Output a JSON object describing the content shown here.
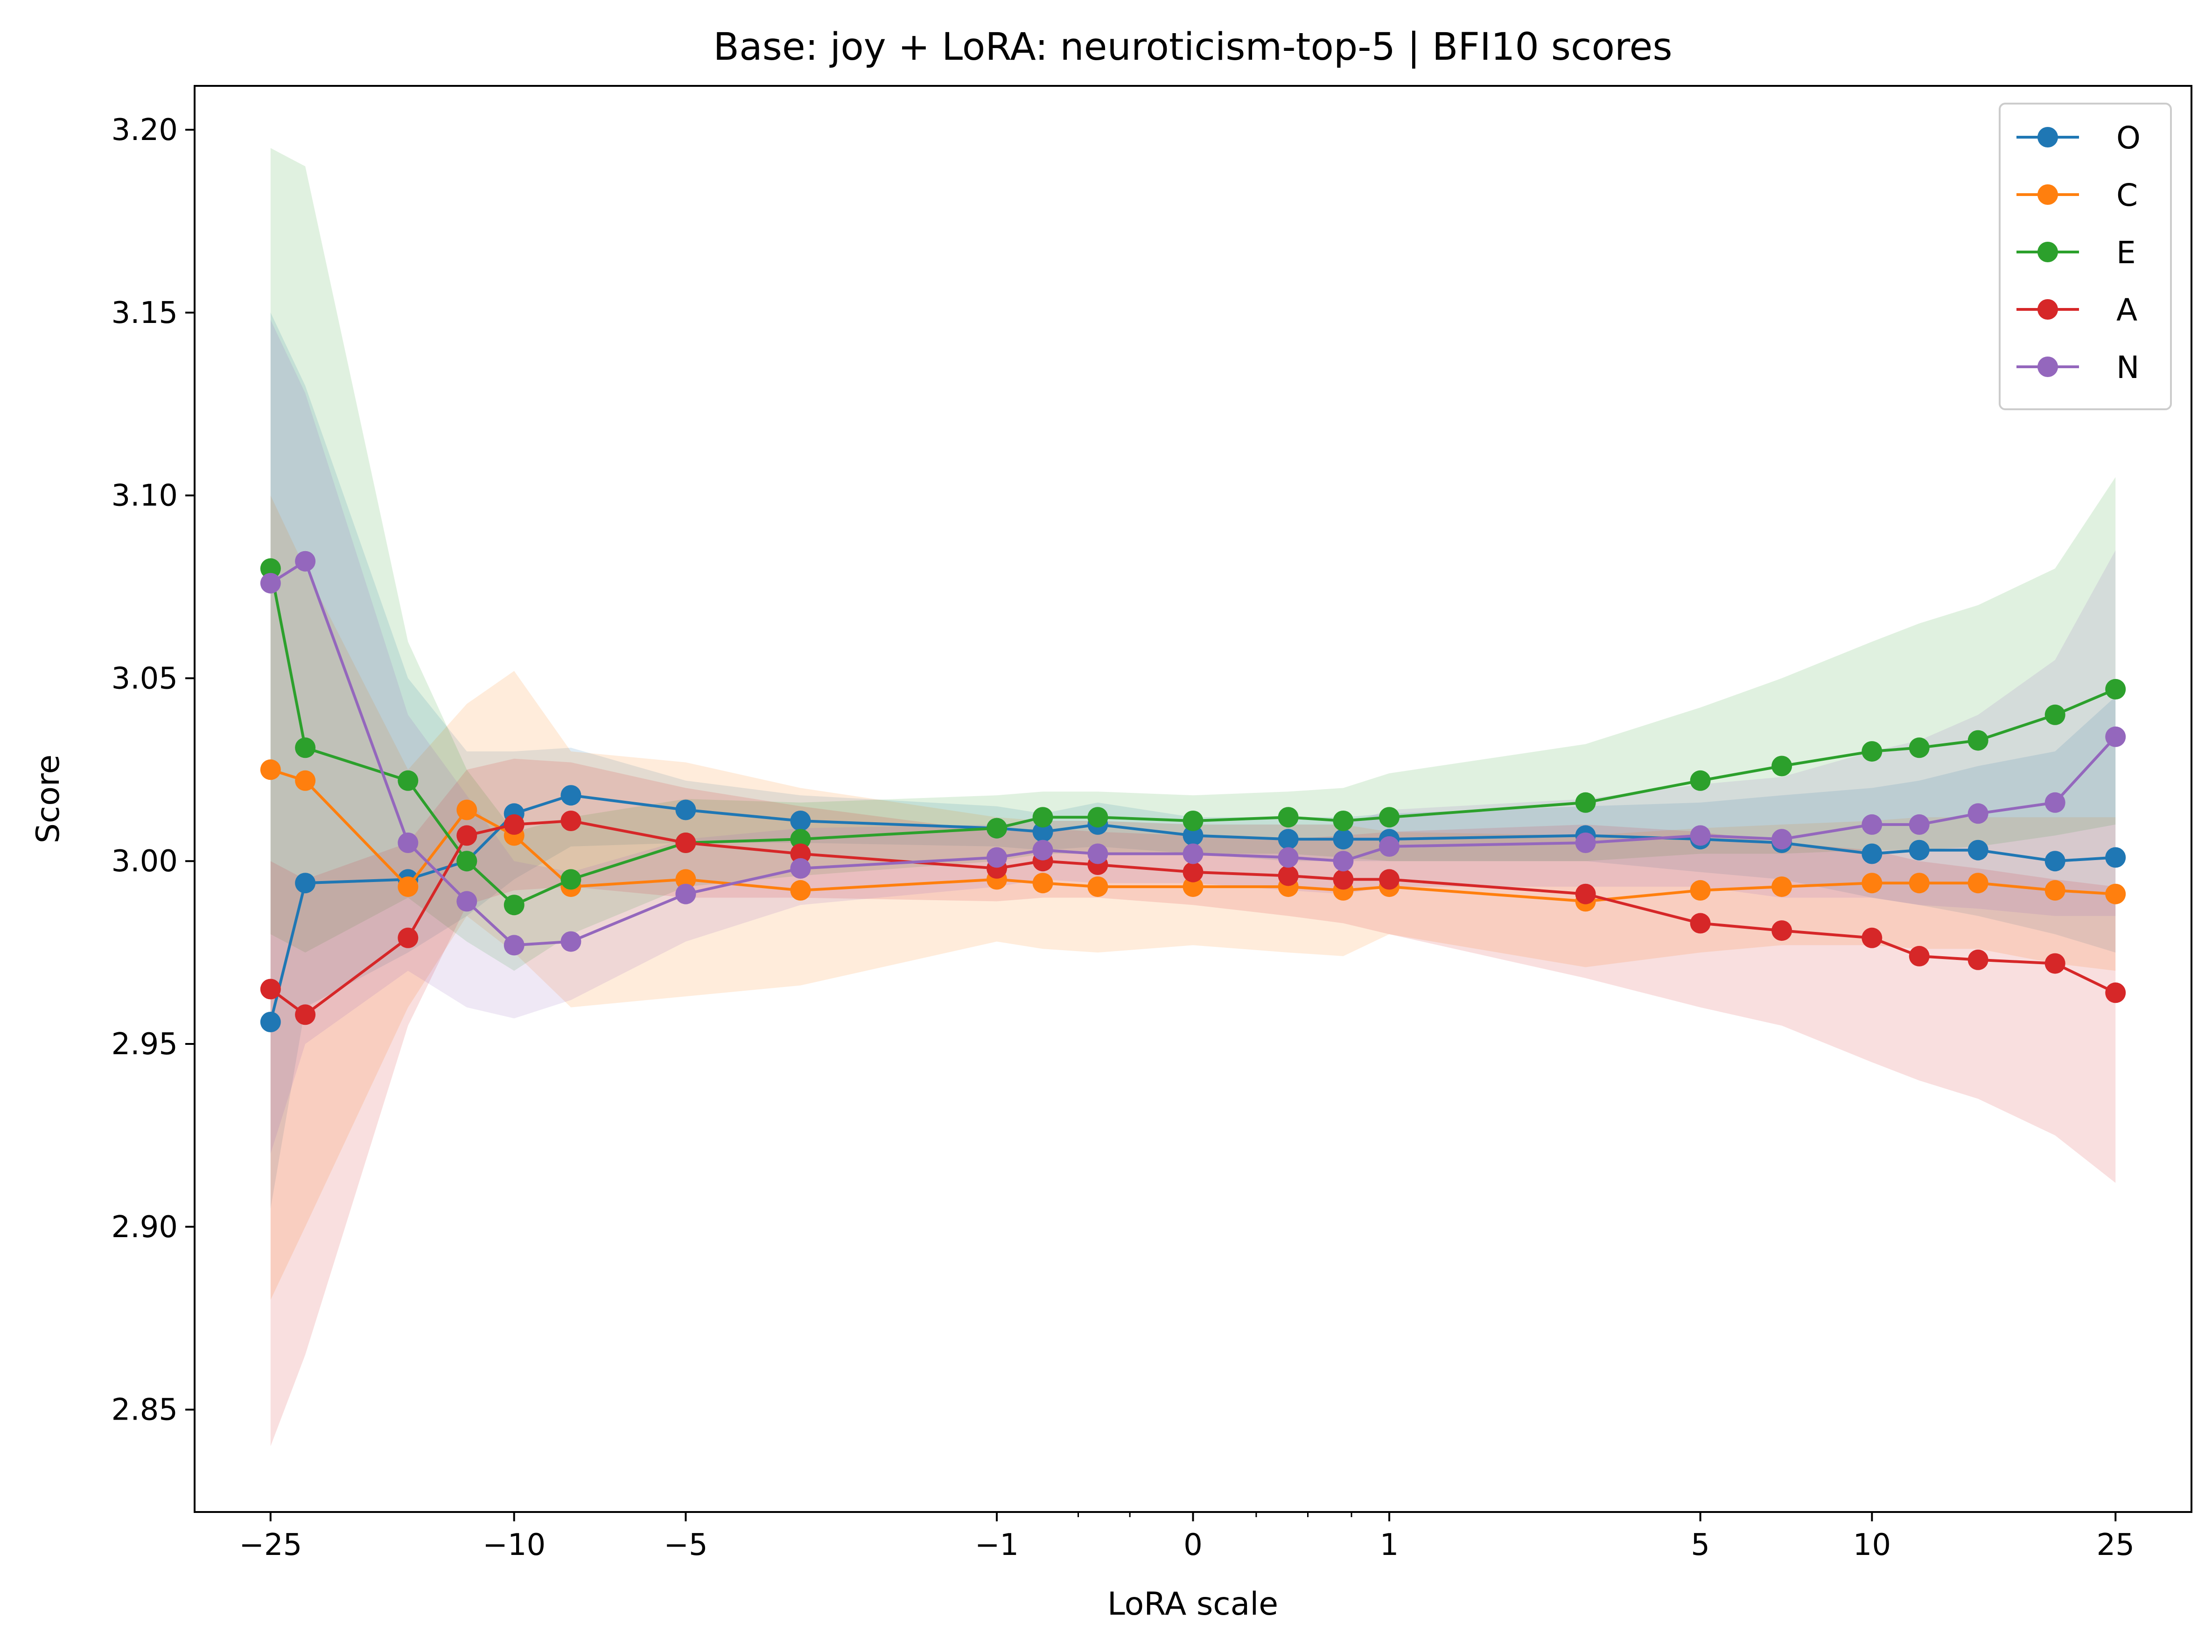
{
  "chart_data": {
    "type": "line",
    "title": "Base: joy + LoRA: neuroticism-top-5 | BFI10 scores",
    "xlabel": "LoRA scale",
    "ylabel": "Score",
    "xscale": "symlog",
    "xlim": [
      -33,
      33
    ],
    "ylim": [
      2.822,
      3.212
    ],
    "x_tick_labels": [
      {
        "x": -25,
        "label": "−25"
      },
      {
        "x": -10,
        "label": "−10"
      },
      {
        "x": -5,
        "label": "−5"
      },
      {
        "x": -1,
        "label": "−1"
      },
      {
        "x": 0,
        "label": "0"
      },
      {
        "x": 1,
        "label": "1"
      },
      {
        "x": 5,
        "label": "5"
      },
      {
        "x": 10,
        "label": "10"
      },
      {
        "x": 25,
        "label": "25"
      }
    ],
    "x_minor_ticks": [
      -0.5,
      -0.25,
      0.25,
      0.5,
      0.75
    ],
    "y_ticks": [
      2.85,
      2.9,
      2.95,
      3.0,
      3.05,
      3.1,
      3.15,
      3.2
    ],
    "y_tick_labels": [
      "2.85",
      "2.90",
      "2.95",
      "3.00",
      "3.05",
      "3.10",
      "3.15",
      "3.20"
    ],
    "legend": {
      "position": "top-right"
    },
    "grid": false,
    "x": [
      -25,
      -22,
      -15,
      -12,
      -10,
      -8,
      -5,
      -3,
      -1,
      -0.7,
      -0.4,
      0,
      0.4,
      0.7,
      1,
      3,
      5,
      7,
      10,
      12,
      15,
      20,
      25
    ],
    "series": [
      {
        "name": "O",
        "color": "#1f77b4",
        "values": [
          2.956,
          2.994,
          2.995,
          3.0,
          3.013,
          3.018,
          3.014,
          3.011,
          3.009,
          3.008,
          3.01,
          3.007,
          3.006,
          3.006,
          3.006,
          3.007,
          3.006,
          3.005,
          3.002,
          3.003,
          3.003,
          3.0,
          3.001
        ],
        "band_lower": [
          2.905,
          2.96,
          2.975,
          2.985,
          2.995,
          3.004,
          3.005,
          3.005,
          3.004,
          3.003,
          3.004,
          3.002,
          3.0,
          3.0,
          3.0,
          3.0,
          2.997,
          2.995,
          2.99,
          2.988,
          2.985,
          2.98,
          2.975
        ],
        "band_upper": [
          3.15,
          3.13,
          3.05,
          3.03,
          3.03,
          3.031,
          3.022,
          3.018,
          3.015,
          3.013,
          3.016,
          3.012,
          3.012,
          3.012,
          3.013,
          3.015,
          3.016,
          3.018,
          3.02,
          3.022,
          3.026,
          3.03,
          3.045
        ]
      },
      {
        "name": "C",
        "color": "#ff7f0e",
        "values": [
          3.025,
          3.022,
          2.993,
          3.014,
          3.007,
          2.993,
          2.995,
          2.992,
          2.995,
          2.994,
          2.993,
          2.993,
          2.993,
          2.992,
          2.993,
          2.989,
          2.992,
          2.993,
          2.994,
          2.994,
          2.994,
          2.992,
          2.991
        ],
        "band_lower": [
          2.88,
          2.9,
          2.96,
          2.985,
          2.975,
          2.96,
          2.963,
          2.966,
          2.978,
          2.976,
          2.975,
          2.977,
          2.975,
          2.974,
          2.98,
          2.971,
          2.975,
          2.977,
          2.977,
          2.976,
          2.976,
          2.972,
          2.97
        ],
        "band_upper": [
          3.1,
          3.08,
          3.025,
          3.043,
          3.052,
          3.03,
          3.027,
          3.02,
          3.012,
          3.011,
          3.011,
          3.01,
          3.01,
          3.01,
          3.008,
          3.007,
          3.009,
          3.01,
          3.011,
          3.012,
          3.012,
          3.012,
          3.012
        ]
      },
      {
        "name": "E",
        "color": "#2ca02c",
        "values": [
          3.08,
          3.031,
          3.022,
          3.0,
          2.988,
          2.995,
          3.005,
          3.006,
          3.009,
          3.012,
          3.012,
          3.011,
          3.012,
          3.011,
          3.012,
          3.016,
          3.022,
          3.026,
          3.03,
          3.031,
          3.033,
          3.04,
          3.047
        ],
        "band_lower": [
          2.98,
          2.975,
          2.99,
          2.978,
          2.97,
          2.98,
          2.993,
          2.996,
          3.0,
          3.002,
          3.002,
          3.002,
          3.002,
          3.001,
          3.0,
          3.0,
          3.002,
          3.002,
          3.003,
          3.003,
          3.004,
          3.007,
          3.01
        ],
        "band_upper": [
          3.195,
          3.19,
          3.06,
          3.025,
          3.008,
          3.012,
          3.017,
          3.016,
          3.018,
          3.019,
          3.019,
          3.018,
          3.019,
          3.02,
          3.024,
          3.032,
          3.042,
          3.05,
          3.06,
          3.065,
          3.07,
          3.08,
          3.105
        ]
      },
      {
        "name": "A",
        "color": "#d62728",
        "values": [
          2.965,
          2.958,
          2.979,
          3.007,
          3.01,
          3.011,
          3.005,
          3.002,
          2.998,
          3.0,
          2.999,
          2.997,
          2.996,
          2.995,
          2.995,
          2.991,
          2.983,
          2.981,
          2.979,
          2.974,
          2.973,
          2.972,
          2.964
        ],
        "band_lower": [
          2.84,
          2.865,
          2.955,
          2.988,
          2.992,
          2.993,
          2.99,
          2.99,
          2.989,
          2.99,
          2.99,
          2.988,
          2.985,
          2.983,
          2.98,
          2.968,
          2.96,
          2.955,
          2.945,
          2.94,
          2.935,
          2.925,
          2.912
        ],
        "band_upper": [
          3.0,
          2.995,
          3.005,
          3.025,
          3.028,
          3.027,
          3.02,
          3.015,
          3.008,
          3.009,
          3.008,
          3.007,
          3.006,
          3.007,
          3.008,
          3.01,
          3.008,
          3.005,
          3.003,
          3.0,
          2.998,
          2.995,
          2.993
        ]
      },
      {
        "name": "N",
        "color": "#9467bd",
        "values": [
          3.076,
          3.082,
          3.005,
          2.989,
          2.977,
          2.978,
          2.991,
          2.998,
          3.001,
          3.003,
          3.002,
          3.002,
          3.001,
          3.0,
          3.004,
          3.005,
          3.007,
          3.006,
          3.01,
          3.01,
          3.013,
          3.016,
          3.034
        ],
        "band_lower": [
          2.92,
          2.95,
          2.97,
          2.96,
          2.957,
          2.962,
          2.978,
          2.988,
          2.993,
          2.995,
          2.994,
          2.994,
          2.992,
          2.991,
          2.993,
          2.993,
          2.993,
          2.99,
          2.99,
          2.988,
          2.987,
          2.985,
          2.985
        ],
        "band_upper": [
          3.148,
          3.128,
          3.04,
          3.018,
          3.0,
          2.997,
          3.006,
          3.009,
          3.01,
          3.011,
          3.011,
          3.01,
          3.01,
          3.01,
          3.014,
          3.017,
          3.021,
          3.023,
          3.03,
          3.033,
          3.04,
          3.055,
          3.085
        ]
      }
    ]
  }
}
